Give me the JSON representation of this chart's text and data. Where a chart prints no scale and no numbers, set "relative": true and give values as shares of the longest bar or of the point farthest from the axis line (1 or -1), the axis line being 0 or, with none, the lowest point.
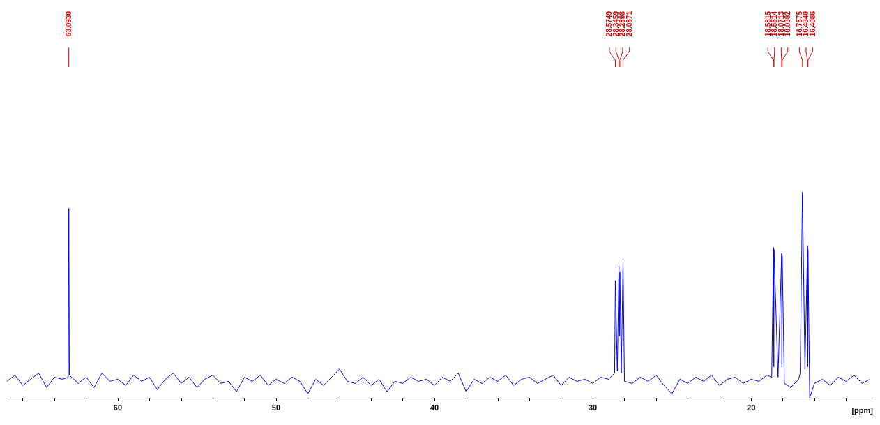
{
  "chart_data": {
    "type": "line",
    "relative": true,
    "xlabel": "[ppm]",
    "xlim": [
      67,
      12.3
    ],
    "xticks": [
      {
        "value": 66,
        "label": null
      },
      {
        "value": 64,
        "label": null
      },
      {
        "value": 62,
        "label": null
      },
      60,
      {
        "value": 58,
        "label": null
      },
      {
        "value": 56,
        "label": null
      },
      {
        "value": 54,
        "label": null
      },
      {
        "value": 52,
        "label": null
      },
      50,
      {
        "value": 48,
        "label": null
      },
      {
        "value": 46,
        "label": null
      },
      {
        "value": 44,
        "label": null
      },
      {
        "value": 42,
        "label": null
      },
      40,
      {
        "value": 38,
        "label": null
      },
      {
        "value": 36,
        "label": null
      },
      {
        "value": 34,
        "label": null
      },
      {
        "value": 32,
        "label": null
      },
      30,
      {
        "value": 28,
        "label": null
      },
      {
        "value": 26,
        "label": null
      },
      {
        "value": 24,
        "label": null
      },
      {
        "value": 22,
        "label": null
      },
      20,
      {
        "value": 18,
        "label": null
      },
      {
        "value": 16,
        "label": null
      },
      {
        "value": 14,
        "label": null
      }
    ],
    "grid": false,
    "marker": "none",
    "line_style": "solid",
    "series": [
      {
        "color": "#0000ee",
        "x": [
          67,
          66.5,
          66,
          65.5,
          65,
          64.5,
          64,
          63.5,
          63.13,
          63.093,
          63.06,
          62.5,
          62,
          61.5,
          61,
          60.5,
          60,
          59.5,
          59,
          58.5,
          58,
          57.5,
          57,
          56.5,
          56,
          55.5,
          55,
          54.5,
          54,
          53.5,
          53,
          52.5,
          52,
          51.5,
          51,
          50.5,
          50,
          49.5,
          49,
          48.5,
          48,
          47.5,
          47,
          46.5,
          46,
          45.5,
          45,
          44.5,
          44,
          43.5,
          43,
          42.5,
          42,
          41.5,
          41,
          40.5,
          40,
          39.5,
          39,
          38.5,
          38,
          37.5,
          37,
          36.5,
          36,
          35.5,
          35,
          34.5,
          34,
          33.5,
          33,
          32.5,
          32,
          31.5,
          31,
          30.5,
          30,
          29.5,
          29,
          28.62,
          28.5749,
          28.45,
          28.3459,
          28.32,
          28.2898,
          28.2,
          28.0871,
          28.0,
          27.5,
          27,
          26.5,
          26,
          25.5,
          25,
          24.5,
          24,
          23.5,
          23,
          22.5,
          22,
          21.5,
          21,
          20.5,
          20,
          19.5,
          19,
          18.7,
          18.5815,
          18.566,
          18.5514,
          18.3,
          18.0713,
          18.055,
          18.0382,
          17.9,
          17.5,
          17,
          16.9,
          16.7575,
          16.6,
          16.434,
          16.42,
          16.4086,
          16.3,
          16,
          15.5,
          15,
          14.5,
          14,
          13.5,
          13,
          12.5
        ],
        "values": [
          0.08,
          0.11,
          0.06,
          0.09,
          0.12,
          0.05,
          0.1,
          0.09,
          0.1,
          0.92,
          0.11,
          0.07,
          0.1,
          0.05,
          0.12,
          0.08,
          0.09,
          0.06,
          0.11,
          0.08,
          0.1,
          0.04,
          0.09,
          0.12,
          0.07,
          0.1,
          0.05,
          0.09,
          0.11,
          0.07,
          0.08,
          0.03,
          0.1,
          0.08,
          0.11,
          0.06,
          0.09,
          0.07,
          0.1,
          0.08,
          0.02,
          0.09,
          0.06,
          0.1,
          0.14,
          0.08,
          0.07,
          0.1,
          0.06,
          0.09,
          0.03,
          0.08,
          0.07,
          0.1,
          0.08,
          0.09,
          0.06,
          0.1,
          0.08,
          0.12,
          0.03,
          0.09,
          0.07,
          0.1,
          0.08,
          0.11,
          0.06,
          0.09,
          0.1,
          0.07,
          0.09,
          0.11,
          0.06,
          0.1,
          0.08,
          0.09,
          0.07,
          0.1,
          0.09,
          0.12,
          0.57,
          0.13,
          0.64,
          0.3,
          0.61,
          0.12,
          0.66,
          0.08,
          0.07,
          0.1,
          0.08,
          0.11,
          0.06,
          0.02,
          0.09,
          0.07,
          0.1,
          0.08,
          0.11,
          0.06,
          0.09,
          0.1,
          0.07,
          0.09,
          0.08,
          0.11,
          0.1,
          0.73,
          0.15,
          0.72,
          0.1,
          0.7,
          0.15,
          0.69,
          0.07,
          0.05,
          0.09,
          0.12,
          1,
          0.14,
          0.74,
          0.15,
          0.72,
          0.0,
          0.07,
          0.09,
          0.06,
          0.1,
          0.08,
          0.11,
          0.07,
          0.09
        ]
      }
    ],
    "annotations": [
      "63.0930",
      "28.5749",
      "28.3459",
      "28.2898",
      "28.0871",
      "18.5815",
      "18.5514",
      "18.0713",
      "18.0382",
      "16.7575",
      "16.4340",
      "16.4086"
    ]
  }
}
